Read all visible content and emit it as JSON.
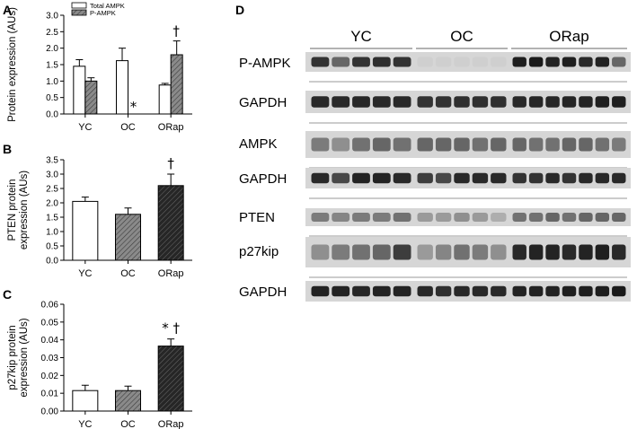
{
  "panels": {
    "a": {
      "label": "A"
    },
    "b": {
      "label": "B"
    },
    "c": {
      "label": "C"
    },
    "d": {
      "label": "D"
    }
  },
  "chart_data": [
    {
      "type": "bar",
      "panel": "A",
      "ylabel": "Protein expression (AUs)",
      "ylim": [
        0,
        3.0
      ],
      "yticks": [
        "0.0",
        "0.5",
        "1.0",
        "1.5",
        "2.0",
        "2.5",
        "3.0"
      ],
      "categories": [
        "YC",
        "OC",
        "ORap"
      ],
      "legend_placement": "top-left",
      "series": [
        {
          "name": "Total AMPK",
          "values": [
            1.45,
            1.62,
            0.88
          ],
          "errors": [
            0.2,
            0.38,
            0.05
          ],
          "color": "#ffffff"
        },
        {
          "name": "P-AMPK",
          "values": [
            1.0,
            0.0,
            1.8
          ],
          "errors": [
            0.1,
            0.0,
            0.42
          ],
          "color": "#777777"
        }
      ],
      "annotations": [
        {
          "category": "OC",
          "series": "P-AMPK",
          "text": "*"
        },
        {
          "category": "ORap",
          "series": "P-AMPK",
          "text": "†"
        }
      ]
    },
    {
      "type": "bar",
      "panel": "B",
      "ylabel": [
        "PTEN protein",
        "expression (AUs)"
      ],
      "ylim": [
        0,
        3.5
      ],
      "yticks": [
        "0.0",
        "0.5",
        "1.0",
        "1.5",
        "2.0",
        "2.5",
        "3.0",
        "3.5"
      ],
      "categories": [
        "YC",
        "OC",
        "ORap"
      ],
      "values": [
        2.05,
        1.6,
        2.6
      ],
      "errors": [
        0.15,
        0.22,
        0.4
      ],
      "colors": [
        "#ffffff",
        "#888888",
        "#303030"
      ],
      "annotations": [
        {
          "category": "ORap",
          "text": "†"
        }
      ]
    },
    {
      "type": "bar",
      "panel": "C",
      "ylabel": [
        "p27kip protein",
        "expression (AUs)"
      ],
      "ylim": [
        0,
        0.06
      ],
      "yticks": [
        "0.00",
        "0.01",
        "0.02",
        "0.03",
        "0.04",
        "0.05",
        "0.06"
      ],
      "categories": [
        "YC",
        "OC",
        "ORap"
      ],
      "values": [
        0.0115,
        0.0115,
        0.0365
      ],
      "errors": [
        0.003,
        0.0025,
        0.004
      ],
      "colors": [
        "#ffffff",
        "#888888",
        "#303030"
      ],
      "annotations": [
        {
          "category": "ORap",
          "text": "* †"
        }
      ]
    }
  ],
  "blot": {
    "groups": [
      "YC",
      "OC",
      "ORap"
    ],
    "rows": [
      {
        "name": "P-AMPK",
        "intensity": [
          0.8,
          0.55,
          0.8,
          0.82,
          0.8,
          0.04,
          0.04,
          0.04,
          0.04,
          0.04,
          0.9,
          0.92,
          0.88,
          0.9,
          0.85,
          0.88,
          0.55
        ]
      },
      {
        "name": "GAPDH",
        "intensity": [
          0.85,
          0.85,
          0.86,
          0.85,
          0.85,
          0.8,
          0.8,
          0.82,
          0.82,
          0.82,
          0.85,
          0.86,
          0.86,
          0.87,
          0.88,
          0.9,
          0.9
        ]
      },
      {
        "name": "AMPK",
        "intensity": [
          0.45,
          0.35,
          0.5,
          0.55,
          0.5,
          0.55,
          0.55,
          0.55,
          0.5,
          0.55,
          0.55,
          0.5,
          0.5,
          0.55,
          0.55,
          0.5,
          0.45
        ]
      },
      {
        "name": "GAPDH",
        "intensity": [
          0.85,
          0.7,
          0.88,
          0.88,
          0.85,
          0.75,
          0.7,
          0.85,
          0.85,
          0.85,
          0.8,
          0.8,
          0.85,
          0.8,
          0.85,
          0.85,
          0.85
        ]
      },
      {
        "name": "PTEN",
        "intensity": [
          0.45,
          0.4,
          0.45,
          0.45,
          0.5,
          0.3,
          0.3,
          0.35,
          0.3,
          0.2,
          0.5,
          0.5,
          0.55,
          0.5,
          0.55,
          0.55,
          0.55
        ]
      },
      {
        "name": "p27kip",
        "intensity": [
          0.35,
          0.45,
          0.5,
          0.55,
          0.75,
          0.3,
          0.4,
          0.5,
          0.45,
          0.35,
          0.85,
          0.88,
          0.88,
          0.85,
          0.88,
          0.9,
          0.85
        ]
      },
      {
        "name": "GAPDH",
        "intensity": [
          0.88,
          0.88,
          0.86,
          0.88,
          0.88,
          0.85,
          0.82,
          0.85,
          0.85,
          0.85,
          0.88,
          0.88,
          0.88,
          0.9,
          0.9,
          0.9,
          0.92
        ]
      }
    ]
  }
}
